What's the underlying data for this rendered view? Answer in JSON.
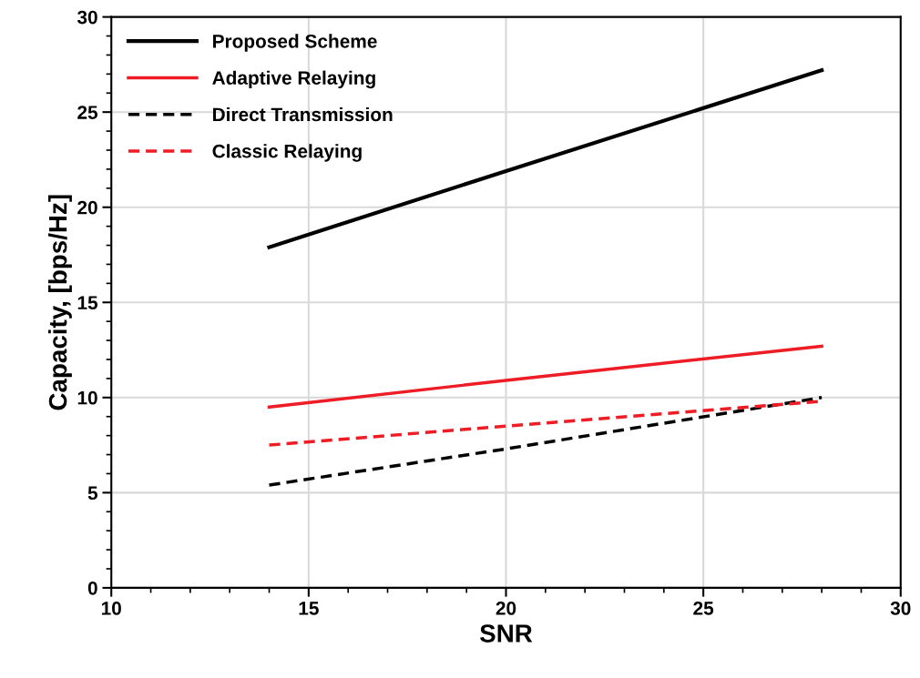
{
  "chart_data": {
    "type": "line",
    "xlabel": "SNR",
    "ylabel": "Capacity, [bps/Hz]",
    "x": [
      14,
      20,
      28
    ],
    "series": [
      {
        "name": "Proposed Scheme",
        "color": "#000000",
        "line_style": "solid",
        "values": [
          17.9,
          21.9,
          27.2
        ]
      },
      {
        "name": "Adaptive Relaying",
        "color": "#ee1c24",
        "line_style": "solid",
        "values": [
          9.5,
          10.9,
          12.7
        ]
      },
      {
        "name": "Direct Transmission",
        "color": "#000000",
        "line_style": "dashed",
        "values": [
          5.4,
          7.3,
          10.0
        ]
      },
      {
        "name": "Classic Relaying",
        "color": "#ee1c24",
        "line_style": "dashed",
        "values": [
          7.5,
          8.5,
          9.8
        ]
      }
    ],
    "xlim": [
      10,
      30
    ],
    "xticks": [
      10,
      15,
      20,
      25,
      30
    ],
    "ylim": [
      0,
      30
    ],
    "yticks": [
      0,
      5,
      10,
      15,
      20,
      25,
      30
    ],
    "grid": true,
    "legend": "top left",
    "marker": "none"
  }
}
